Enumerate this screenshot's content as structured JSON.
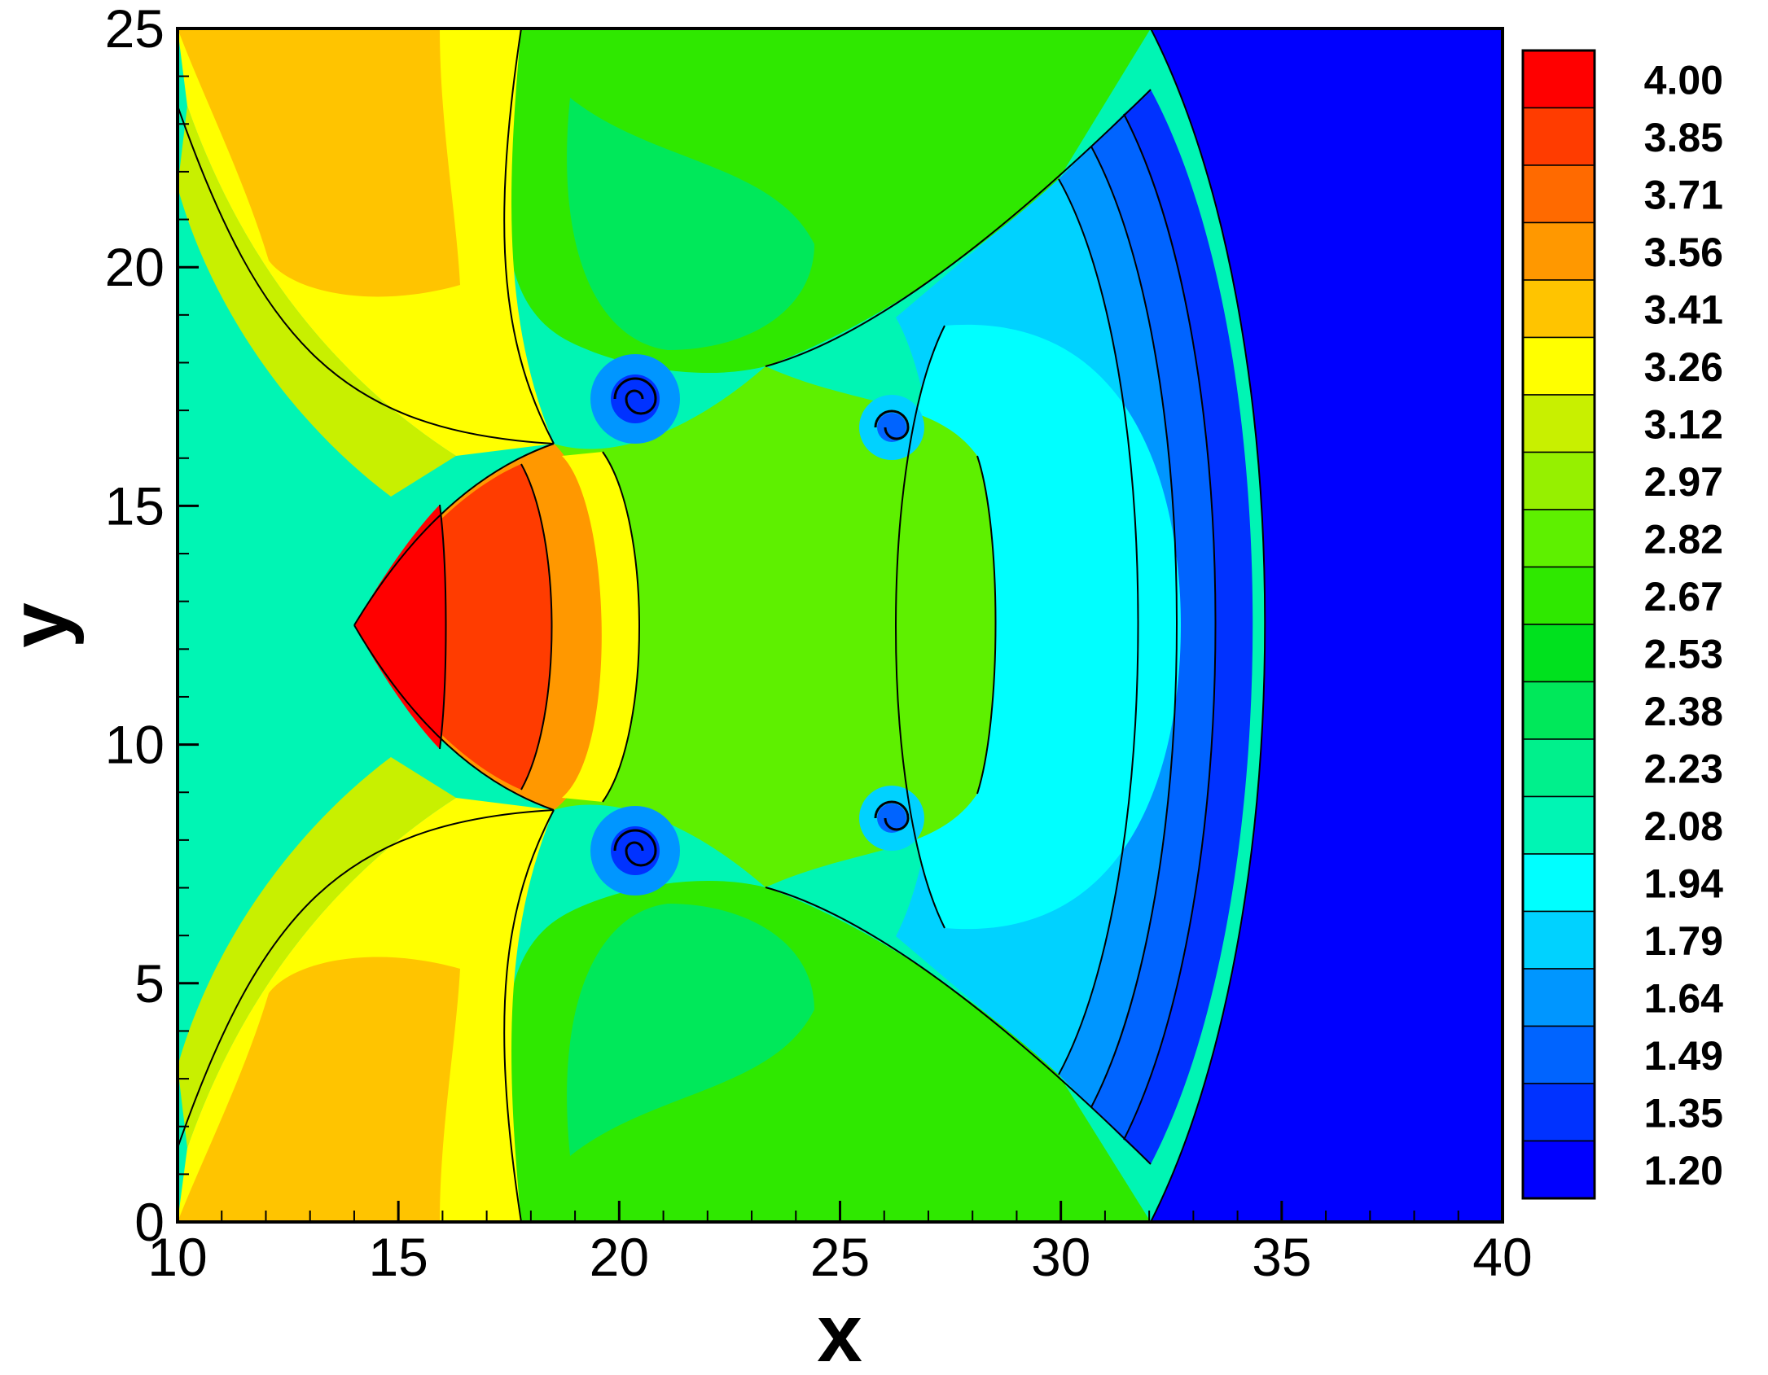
{
  "chart_data": {
    "type": "heatmap",
    "title": "",
    "xlabel": "x",
    "ylabel": "y",
    "xlim": [
      10,
      40
    ],
    "ylim": [
      0,
      25
    ],
    "x_ticks": [
      "10",
      "15",
      "20",
      "25",
      "30",
      "35",
      "40"
    ],
    "y_ticks": [
      "0",
      "5",
      "10",
      "15",
      "20",
      "25"
    ],
    "legend_position": "right",
    "color_levels": [
      {
        "label": "4.00",
        "color": "#ff0000"
      },
      {
        "label": "3.85",
        "color": "#ff3c00"
      },
      {
        "label": "3.71",
        "color": "#ff6a00"
      },
      {
        "label": "3.56",
        "color": "#ff9800"
      },
      {
        "label": "3.41",
        "color": "#ffc400"
      },
      {
        "label": "3.26",
        "color": "#ffff00"
      },
      {
        "label": "3.12",
        "color": "#c8f000"
      },
      {
        "label": "2.97",
        "color": "#96f000"
      },
      {
        "label": "2.82",
        "color": "#5ef000"
      },
      {
        "label": "2.67",
        "color": "#2fe800"
      },
      {
        "label": "2.53",
        "color": "#00e11e"
      },
      {
        "label": "2.38",
        "color": "#00e85a"
      },
      {
        "label": "2.23",
        "color": "#00f08c"
      },
      {
        "label": "2.08",
        "color": "#00f5b4"
      },
      {
        "label": "1.94",
        "color": "#00ffff"
      },
      {
        "label": "1.79",
        "color": "#00d2ff"
      },
      {
        "label": "1.64",
        "color": "#0096ff"
      },
      {
        "label": "1.49",
        "color": "#0064ff"
      },
      {
        "label": "1.35",
        "color": "#0032ff"
      },
      {
        "label": "1.20",
        "color": "#0000ff"
      }
    ]
  }
}
